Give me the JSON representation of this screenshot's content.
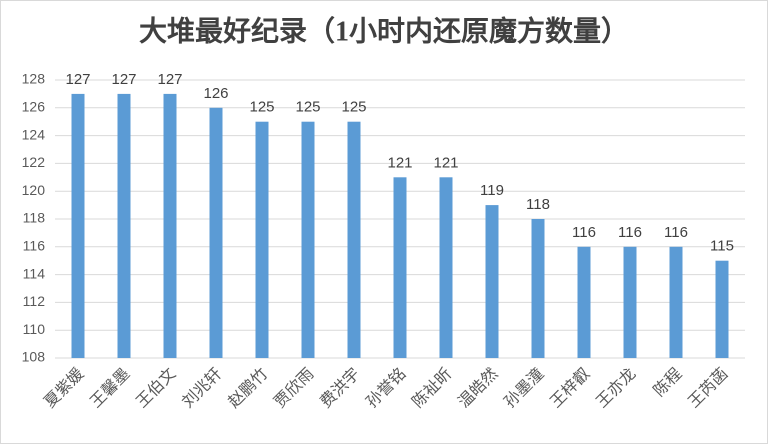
{
  "chart_data": {
    "type": "bar",
    "title": "大堆最好纪录（1小时内还原魔方数量）",
    "categories": [
      "夏紫媛",
      "王馨墨",
      "王伯文",
      "刘兆轩",
      "赵鹏竹",
      "贾欣雨",
      "费洪宇",
      "孙誉铭",
      "陈祉昕",
      "温皓然",
      "孙墨潼",
      "王梓叡",
      "王亦龙",
      "陈程",
      "王芮菡"
    ],
    "values": [
      127,
      127,
      127,
      126,
      125,
      125,
      125,
      121,
      121,
      119,
      118,
      116,
      116,
      116,
      115
    ],
    "color": "#5b9bd5",
    "ylim": [
      108,
      128
    ],
    "yticks": [
      108,
      110,
      112,
      114,
      116,
      118,
      120,
      122,
      124,
      126,
      128
    ],
    "grid": true
  }
}
